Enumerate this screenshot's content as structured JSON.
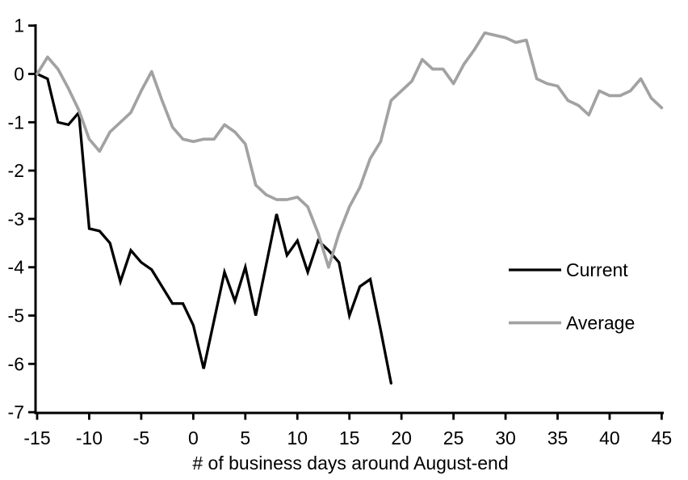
{
  "chart_data": {
    "type": "line",
    "title": "",
    "xlabel": "# of business days around August-end",
    "ylabel": "",
    "xlim": [
      -15,
      45
    ],
    "ylim": [
      -7,
      1
    ],
    "xticks": [
      -15,
      -10,
      -5,
      0,
      5,
      10,
      15,
      20,
      25,
      30,
      35,
      40,
      45
    ],
    "yticks": [
      1,
      0,
      -1,
      -2,
      -3,
      -4,
      -5,
      -6,
      -7
    ],
    "grid": false,
    "legend_position": "right-middle",
    "axis_color": "#000000",
    "background_color": "#ffffff",
    "series": [
      {
        "name": "Current",
        "color": "#000000",
        "stroke_width": 3.3,
        "x": [
          -15,
          -14,
          -13,
          -12,
          -11,
          -10,
          -9,
          -8,
          -7,
          -6,
          -5,
          -4,
          -3,
          -2,
          -1,
          0,
          1,
          2,
          3,
          4,
          5,
          6,
          7,
          8,
          9,
          10,
          11,
          12,
          13,
          14,
          15,
          16,
          17,
          18,
          19
        ],
        "values": [
          0,
          -0.1,
          -1.0,
          -1.05,
          -0.8,
          -3.2,
          -3.25,
          -3.5,
          -4.3,
          -3.65,
          -3.9,
          -4.05,
          -4.4,
          -4.75,
          -4.75,
          -5.2,
          -6.1,
          -5.1,
          -4.1,
          -4.7,
          -4.0,
          -5.0,
          -3.95,
          -2.9,
          -3.75,
          -3.45,
          -4.1,
          -3.45,
          -3.65,
          -3.9,
          -5.0,
          -4.4,
          -4.25,
          -5.3,
          -6.4
        ]
      },
      {
        "name": "Average",
        "color": "#a2a2a2",
        "stroke_width": 3.7,
        "x": [
          -15,
          -14,
          -13,
          -12,
          -11,
          -10,
          -9,
          -8,
          -7,
          -6,
          -5,
          -4,
          -3,
          -2,
          -1,
          0,
          1,
          2,
          3,
          4,
          5,
          6,
          7,
          8,
          9,
          10,
          11,
          12,
          13,
          14,
          15,
          16,
          17,
          18,
          19,
          20,
          21,
          22,
          23,
          24,
          25,
          26,
          27,
          28,
          29,
          30,
          31,
          32,
          33,
          34,
          35,
          36,
          37,
          38,
          39,
          40,
          41,
          42,
          43,
          44,
          45
        ],
        "values": [
          0,
          0.35,
          0.1,
          -0.3,
          -0.75,
          -1.35,
          -1.6,
          -1.2,
          -1.0,
          -0.8,
          -0.35,
          0.05,
          -0.55,
          -1.1,
          -1.35,
          -1.4,
          -1.35,
          -1.35,
          -1.05,
          -1.2,
          -1.45,
          -2.3,
          -2.5,
          -2.6,
          -2.6,
          -2.55,
          -2.75,
          -3.3,
          -4.0,
          -3.3,
          -2.75,
          -2.35,
          -1.75,
          -1.4,
          -0.55,
          -0.35,
          -0.15,
          0.3,
          0.1,
          0.1,
          -0.2,
          0.2,
          0.5,
          0.85,
          0.8,
          0.75,
          0.65,
          0.7,
          -0.1,
          -0.2,
          -0.25,
          -0.55,
          -0.65,
          -0.85,
          -0.35,
          -0.45,
          -0.45,
          -0.35,
          -0.1,
          -0.5,
          -0.7
        ]
      }
    ]
  }
}
